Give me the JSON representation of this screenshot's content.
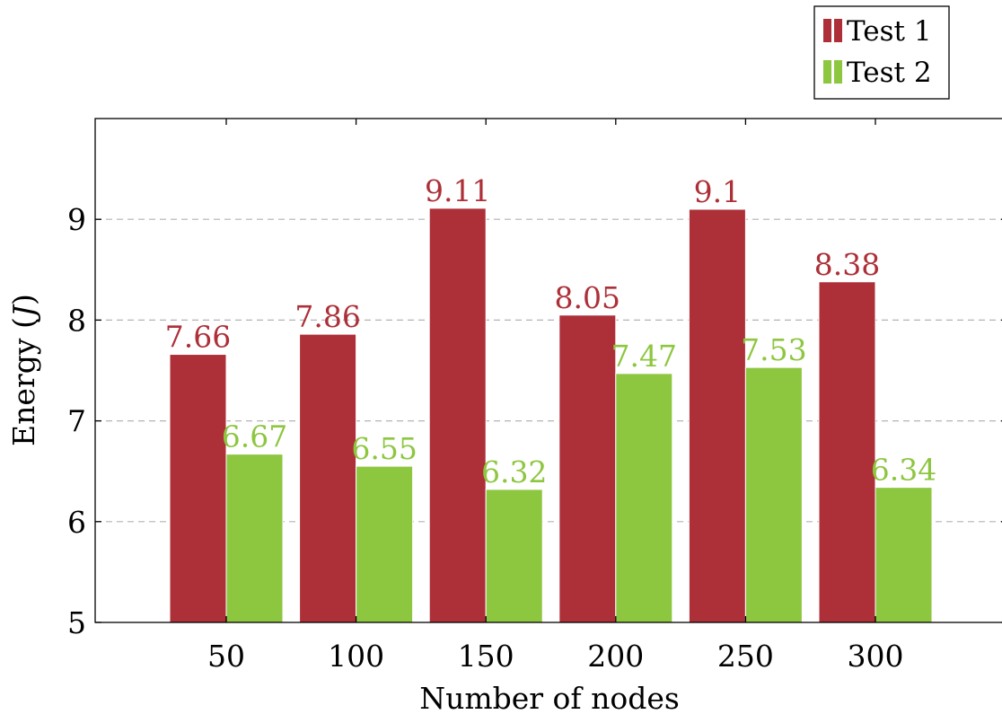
{
  "chart_data": {
    "type": "bar",
    "categories": [
      "50",
      "100",
      "150",
      "200",
      "250",
      "300"
    ],
    "series": [
      {
        "name": "Test 1",
        "color": "#ad3038",
        "values": [
          7.66,
          7.86,
          9.11,
          8.05,
          9.1,
          8.38
        ],
        "labels": [
          "7.66",
          "7.86",
          "9.11",
          "8.05",
          "9.1",
          "8.38"
        ]
      },
      {
        "name": "Test 2",
        "color": "#8dc63f",
        "values": [
          6.67,
          6.55,
          6.32,
          7.47,
          7.53,
          6.34
        ],
        "labels": [
          "6.67",
          "6.55",
          "6.32",
          "7.47",
          "7.53",
          "6.34"
        ]
      }
    ],
    "xlabel": "Number of nodes",
    "ylabel": "Energy (J)",
    "ylim": [
      5,
      10
    ],
    "yticks": [
      5,
      6,
      7,
      8,
      9
    ],
    "ytick_labels": [
      "5",
      "6",
      "7",
      "8",
      "9"
    ],
    "grid": "y-dashed",
    "legend_position": "top-right"
  }
}
